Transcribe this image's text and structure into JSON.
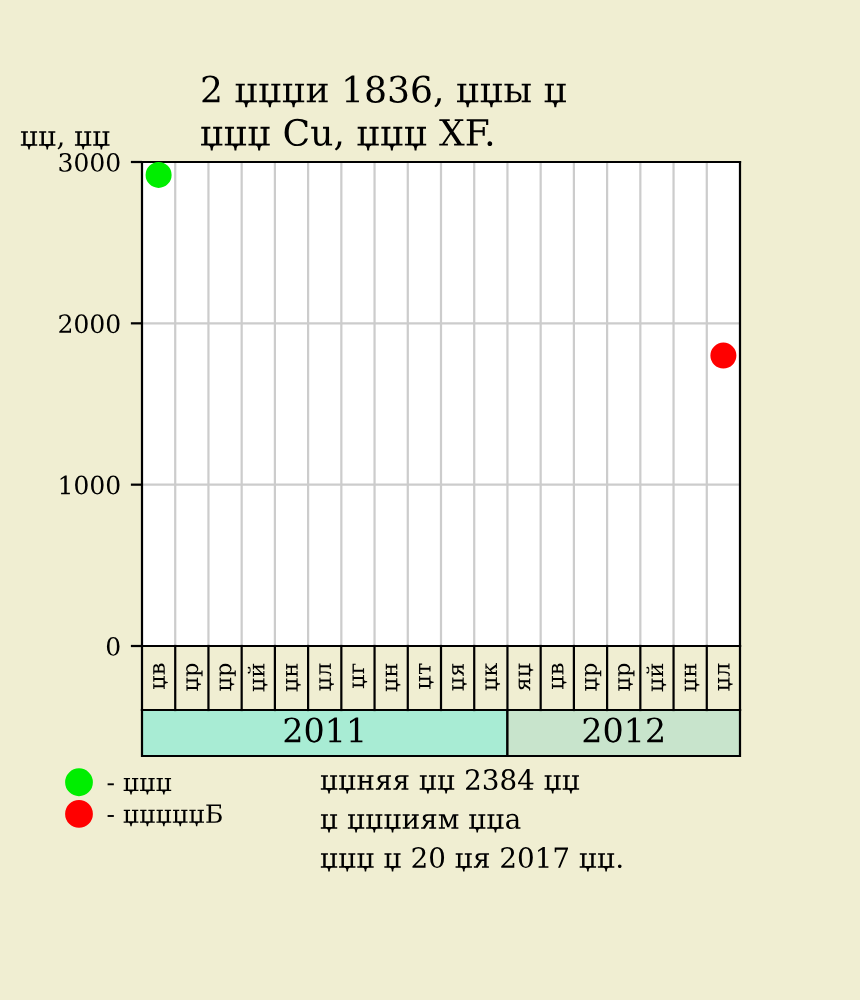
{
  "chart_data": {
    "type": "scatter",
    "title": "2 џџџи 1836, џџы џ\nџџџ Cu, џџџ XF.",
    "ylabel": "џџ, џџ",
    "categories": [
      "џв",
      "џр",
      "џр",
      "џй",
      "џн",
      "џл",
      "џг",
      "џн",
      "џт",
      "џя",
      "џк",
      "яџ",
      "џв",
      "џр",
      "џр",
      "џй",
      "џн",
      "џл"
    ],
    "series": [
      {
        "name": "- џџџ",
        "color": "#00ee00",
        "values": [
          2920,
          null,
          null,
          null,
          null,
          null,
          null,
          null,
          null,
          null,
          null,
          null,
          null,
          null,
          null,
          null,
          null,
          null
        ]
      },
      {
        "name": "- џџџџџБ",
        "color": "#ff0000",
        "values": [
          null,
          null,
          null,
          null,
          null,
          null,
          null,
          null,
          null,
          null,
          null,
          null,
          null,
          null,
          null,
          null,
          null,
          1800
        ]
      }
    ],
    "ylim": [
      0,
      3000
    ],
    "yticks": [
      0,
      1000,
      2000,
      3000
    ],
    "grid": true,
    "marker": "circle",
    "legend": "bottom left",
    "annotations": [
      "2011",
      "2012",
      "џџняя џџ 2384 џџ",
      "џ џџџиям џџа",
      "џџџ џ 20 џя 2017 џџ."
    ]
  }
}
